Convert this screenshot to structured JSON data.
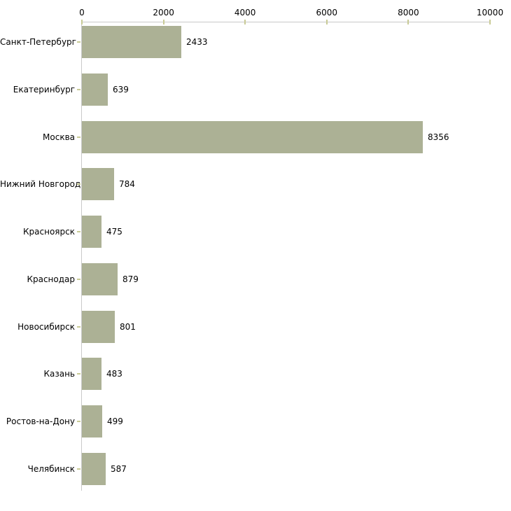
{
  "chart_data": {
    "type": "bar",
    "orientation": "horizontal",
    "title": "",
    "xlabel": "",
    "ylabel": "",
    "categories": [
      "Санкт-Петербург",
      "Екатеринбург",
      "Москва",
      "Нижний Новгород",
      "Красноярск",
      "Краснодар",
      "Новосибирск",
      "Казань",
      "Ростов-на-Дону",
      "Челябинск"
    ],
    "values": [
      2433,
      639,
      8356,
      784,
      475,
      879,
      801,
      483,
      499,
      587
    ],
    "value_labels": [
      "2433",
      "639",
      "8356",
      "784",
      "475",
      "879",
      "801",
      "483",
      "499",
      "587"
    ],
    "xlim": [
      0,
      10000
    ],
    "x_ticks": [
      0,
      2000,
      4000,
      6000,
      8000,
      10000
    ],
    "x_tick_labels": [
      "0",
      "2000",
      "4000",
      "6000",
      "8000",
      "10000"
    ],
    "axis_position": "top",
    "grid": false,
    "legend": false,
    "colors": {
      "bar_fill": "#acb195",
      "axis_line": "#c9c9c9",
      "tick_mark": "#c9cb96",
      "text": "#000000",
      "background": "#ffffff"
    }
  }
}
